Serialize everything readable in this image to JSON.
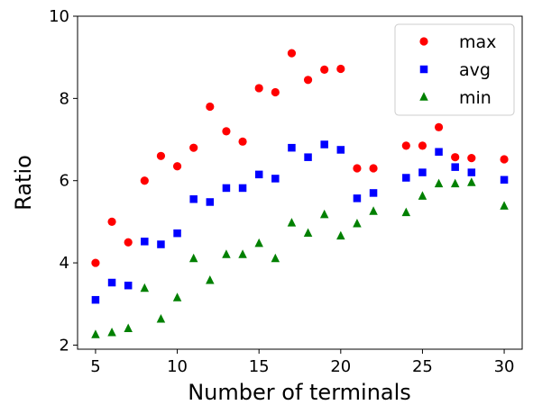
{
  "chart_data": {
    "type": "scatter",
    "xlabel": "Number of terminals",
    "ylabel": "Ratio",
    "xlim": [
      3.9,
      31.1
    ],
    "ylim": [
      1.9,
      10.0
    ],
    "xticks": [
      5,
      10,
      15,
      20,
      25,
      30
    ],
    "yticks": [
      2,
      4,
      6,
      8,
      10
    ],
    "grid": false,
    "legend_position": "top-right",
    "series": [
      {
        "name": "max",
        "marker": "circle",
        "color": "#ff0000",
        "points": [
          [
            5,
            4.0
          ],
          [
            6,
            5.0
          ],
          [
            7,
            4.5
          ],
          [
            8,
            6.0
          ],
          [
            9,
            6.6
          ],
          [
            10,
            6.35
          ],
          [
            11,
            6.8
          ],
          [
            12,
            7.8
          ],
          [
            13,
            7.2
          ],
          [
            14,
            6.95
          ],
          [
            15,
            8.25
          ],
          [
            16,
            8.15
          ],
          [
            17,
            9.1
          ],
          [
            18,
            8.45
          ],
          [
            19,
            8.7
          ],
          [
            20,
            8.72
          ],
          [
            21,
            6.3
          ],
          [
            22,
            6.3
          ],
          [
            24,
            6.85
          ],
          [
            25,
            6.85
          ],
          [
            26,
            7.3
          ],
          [
            27,
            6.57
          ],
          [
            28,
            6.55
          ],
          [
            30,
            6.52
          ]
        ]
      },
      {
        "name": "avg",
        "marker": "square",
        "color": "#0000ff",
        "points": [
          [
            5,
            3.1
          ],
          [
            6,
            3.52
          ],
          [
            7,
            3.45
          ],
          [
            8,
            4.52
          ],
          [
            9,
            4.45
          ],
          [
            10,
            4.72
          ],
          [
            11,
            5.55
          ],
          [
            12,
            5.48
          ],
          [
            13,
            5.82
          ],
          [
            14,
            5.82
          ],
          [
            15,
            6.15
          ],
          [
            16,
            6.05
          ],
          [
            17,
            6.8
          ],
          [
            18,
            6.57
          ],
          [
            19,
            6.88
          ],
          [
            20,
            6.75
          ],
          [
            21,
            5.57
          ],
          [
            22,
            5.7
          ],
          [
            24,
            6.07
          ],
          [
            25,
            6.2
          ],
          [
            26,
            6.7
          ],
          [
            27,
            6.33
          ],
          [
            28,
            6.2
          ],
          [
            30,
            6.02
          ]
        ]
      },
      {
        "name": "min",
        "marker": "triangle",
        "color": "#008000",
        "points": [
          [
            5,
            2.25
          ],
          [
            6,
            2.3
          ],
          [
            7,
            2.4
          ],
          [
            8,
            3.38
          ],
          [
            9,
            2.63
          ],
          [
            10,
            3.15
          ],
          [
            11,
            4.1
          ],
          [
            12,
            3.57
          ],
          [
            13,
            4.2
          ],
          [
            14,
            4.2
          ],
          [
            15,
            4.47
          ],
          [
            16,
            4.1
          ],
          [
            17,
            4.97
          ],
          [
            18,
            4.72
          ],
          [
            19,
            5.17
          ],
          [
            20,
            4.65
          ],
          [
            21,
            4.95
          ],
          [
            22,
            5.25
          ],
          [
            24,
            5.22
          ],
          [
            25,
            5.62
          ],
          [
            26,
            5.92
          ],
          [
            27,
            5.92
          ],
          [
            28,
            5.95
          ],
          [
            30,
            5.38
          ]
        ]
      }
    ]
  }
}
